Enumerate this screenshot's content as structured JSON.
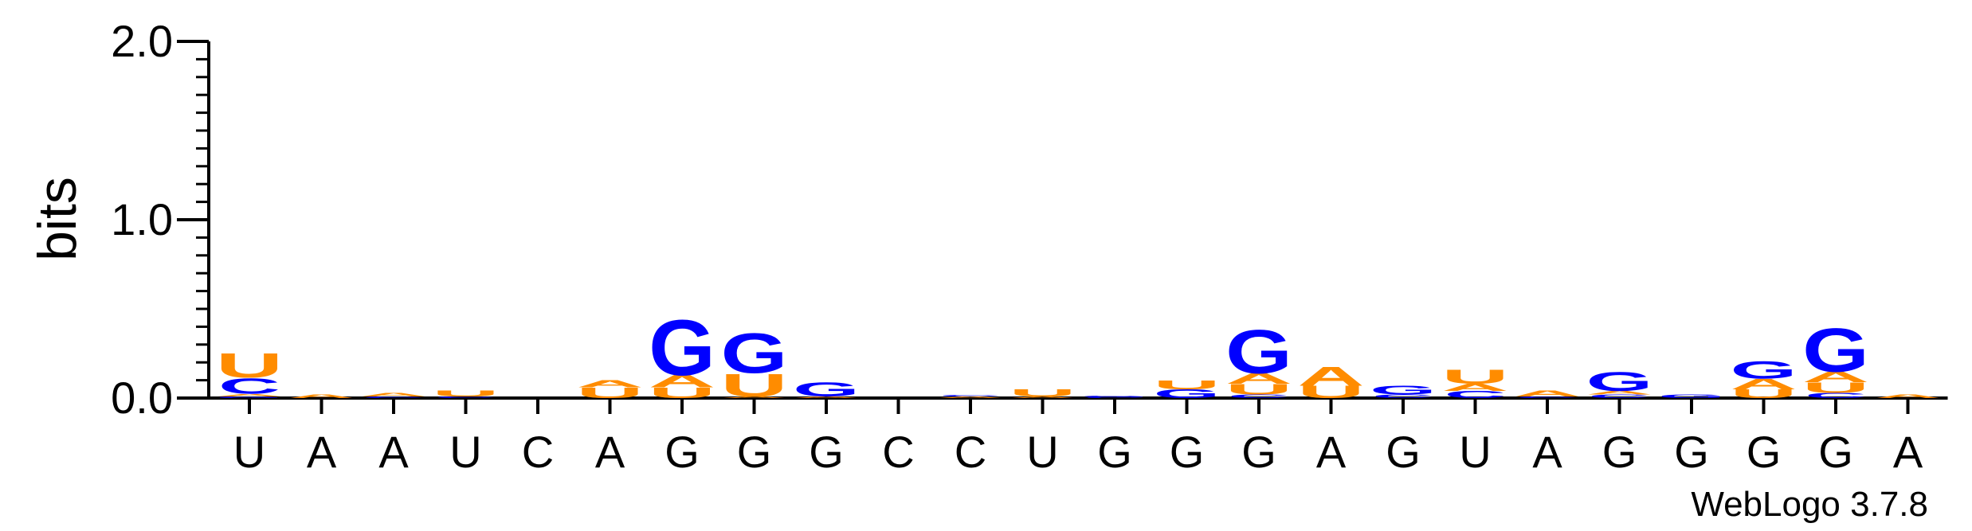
{
  "chart_data": {
    "type": "sequence-logo",
    "ylabel": "bits",
    "ylim": [
      0,
      2
    ],
    "yticks": [
      "0.0",
      "1.0",
      "2.0"
    ],
    "credit": "WebLogo 3.7.8",
    "colors": {
      "G": "#0000ff",
      "C": "#0000ff",
      "A": "#ff8c00",
      "U": "#ff8c00"
    },
    "positions": [
      {
        "label": "U",
        "stack": [
          {
            "l": "G",
            "h": 0.01
          },
          {
            "l": "A",
            "h": 0.015
          },
          {
            "l": "C",
            "h": 0.09
          },
          {
            "l": "U",
            "h": 0.14
          }
        ]
      },
      {
        "label": "A",
        "stack": [
          {
            "l": "A",
            "h": 0.02
          }
        ]
      },
      {
        "label": "A",
        "stack": [
          {
            "l": "C",
            "h": 0.01
          },
          {
            "l": "A",
            "h": 0.02
          }
        ]
      },
      {
        "label": "U",
        "stack": [
          {
            "l": "C",
            "h": 0.01
          },
          {
            "l": "U",
            "h": 0.035
          }
        ]
      },
      {
        "label": "C",
        "stack": []
      },
      {
        "label": "A",
        "stack": [
          {
            "l": "U",
            "h": 0.06
          },
          {
            "l": "A",
            "h": 0.04
          }
        ]
      },
      {
        "label": "G",
        "stack": [
          {
            "l": "U",
            "h": 0.06
          },
          {
            "l": "A",
            "h": 0.07
          },
          {
            "l": "G",
            "h": 0.32
          }
        ]
      },
      {
        "label": "G",
        "stack": [
          {
            "l": "A",
            "h": 0.01
          },
          {
            "l": "U",
            "h": 0.13
          },
          {
            "l": "G",
            "h": 0.23
          }
        ]
      },
      {
        "label": "G",
        "stack": [
          {
            "l": "A",
            "h": 0.01
          },
          {
            "l": "G",
            "h": 0.08
          }
        ]
      },
      {
        "label": "C",
        "stack": []
      },
      {
        "label": "C",
        "stack": [
          {
            "l": "A",
            "h": 0.01
          },
          {
            "l": "C",
            "h": 0.01
          }
        ]
      },
      {
        "label": "U",
        "stack": [
          {
            "l": "A",
            "h": 0.01
          },
          {
            "l": "U",
            "h": 0.04
          }
        ]
      },
      {
        "label": "G",
        "stack": [
          {
            "l": "C",
            "h": 0.005
          },
          {
            "l": "G",
            "h": 0.01
          }
        ]
      },
      {
        "label": "G",
        "stack": [
          {
            "l": "G",
            "h": 0.05
          },
          {
            "l": "U",
            "h": 0.05
          }
        ]
      },
      {
        "label": "G",
        "stack": [
          {
            "l": "C",
            "h": 0.02
          },
          {
            "l": "U",
            "h": 0.06
          },
          {
            "l": "A",
            "h": 0.06
          },
          {
            "l": "G",
            "h": 0.25
          }
        ]
      },
      {
        "label": "A",
        "stack": [
          {
            "l": "U",
            "h": 0.07
          },
          {
            "l": "A",
            "h": 0.11
          }
        ]
      },
      {
        "label": "G",
        "stack": [
          {
            "l": "C",
            "h": 0.02
          },
          {
            "l": "G",
            "h": 0.05
          }
        ]
      },
      {
        "label": "U",
        "stack": [
          {
            "l": "C",
            "h": 0.04
          },
          {
            "l": "A",
            "h": 0.04
          },
          {
            "l": "U",
            "h": 0.08
          }
        ]
      },
      {
        "label": "A",
        "stack": [
          {
            "l": "C",
            "h": 0.01
          },
          {
            "l": "A",
            "h": 0.035
          }
        ]
      },
      {
        "label": "G",
        "stack": [
          {
            "l": "C",
            "h": 0.02
          },
          {
            "l": "A",
            "h": 0.02
          },
          {
            "l": "G",
            "h": 0.11
          }
        ]
      },
      {
        "label": "G",
        "stack": [
          {
            "l": "G",
            "h": 0.02
          }
        ]
      },
      {
        "label": "G",
        "stack": [
          {
            "l": "U",
            "h": 0.05
          },
          {
            "l": "A",
            "h": 0.06
          },
          {
            "l": "G",
            "h": 0.1
          }
        ]
      },
      {
        "label": "G",
        "stack": [
          {
            "l": "C",
            "h": 0.03
          },
          {
            "l": "U",
            "h": 0.06
          },
          {
            "l": "A",
            "h": 0.06
          },
          {
            "l": "G",
            "h": 0.25
          }
        ]
      },
      {
        "label": "A",
        "stack": [
          {
            "l": "A",
            "h": 0.02
          }
        ]
      }
    ]
  }
}
